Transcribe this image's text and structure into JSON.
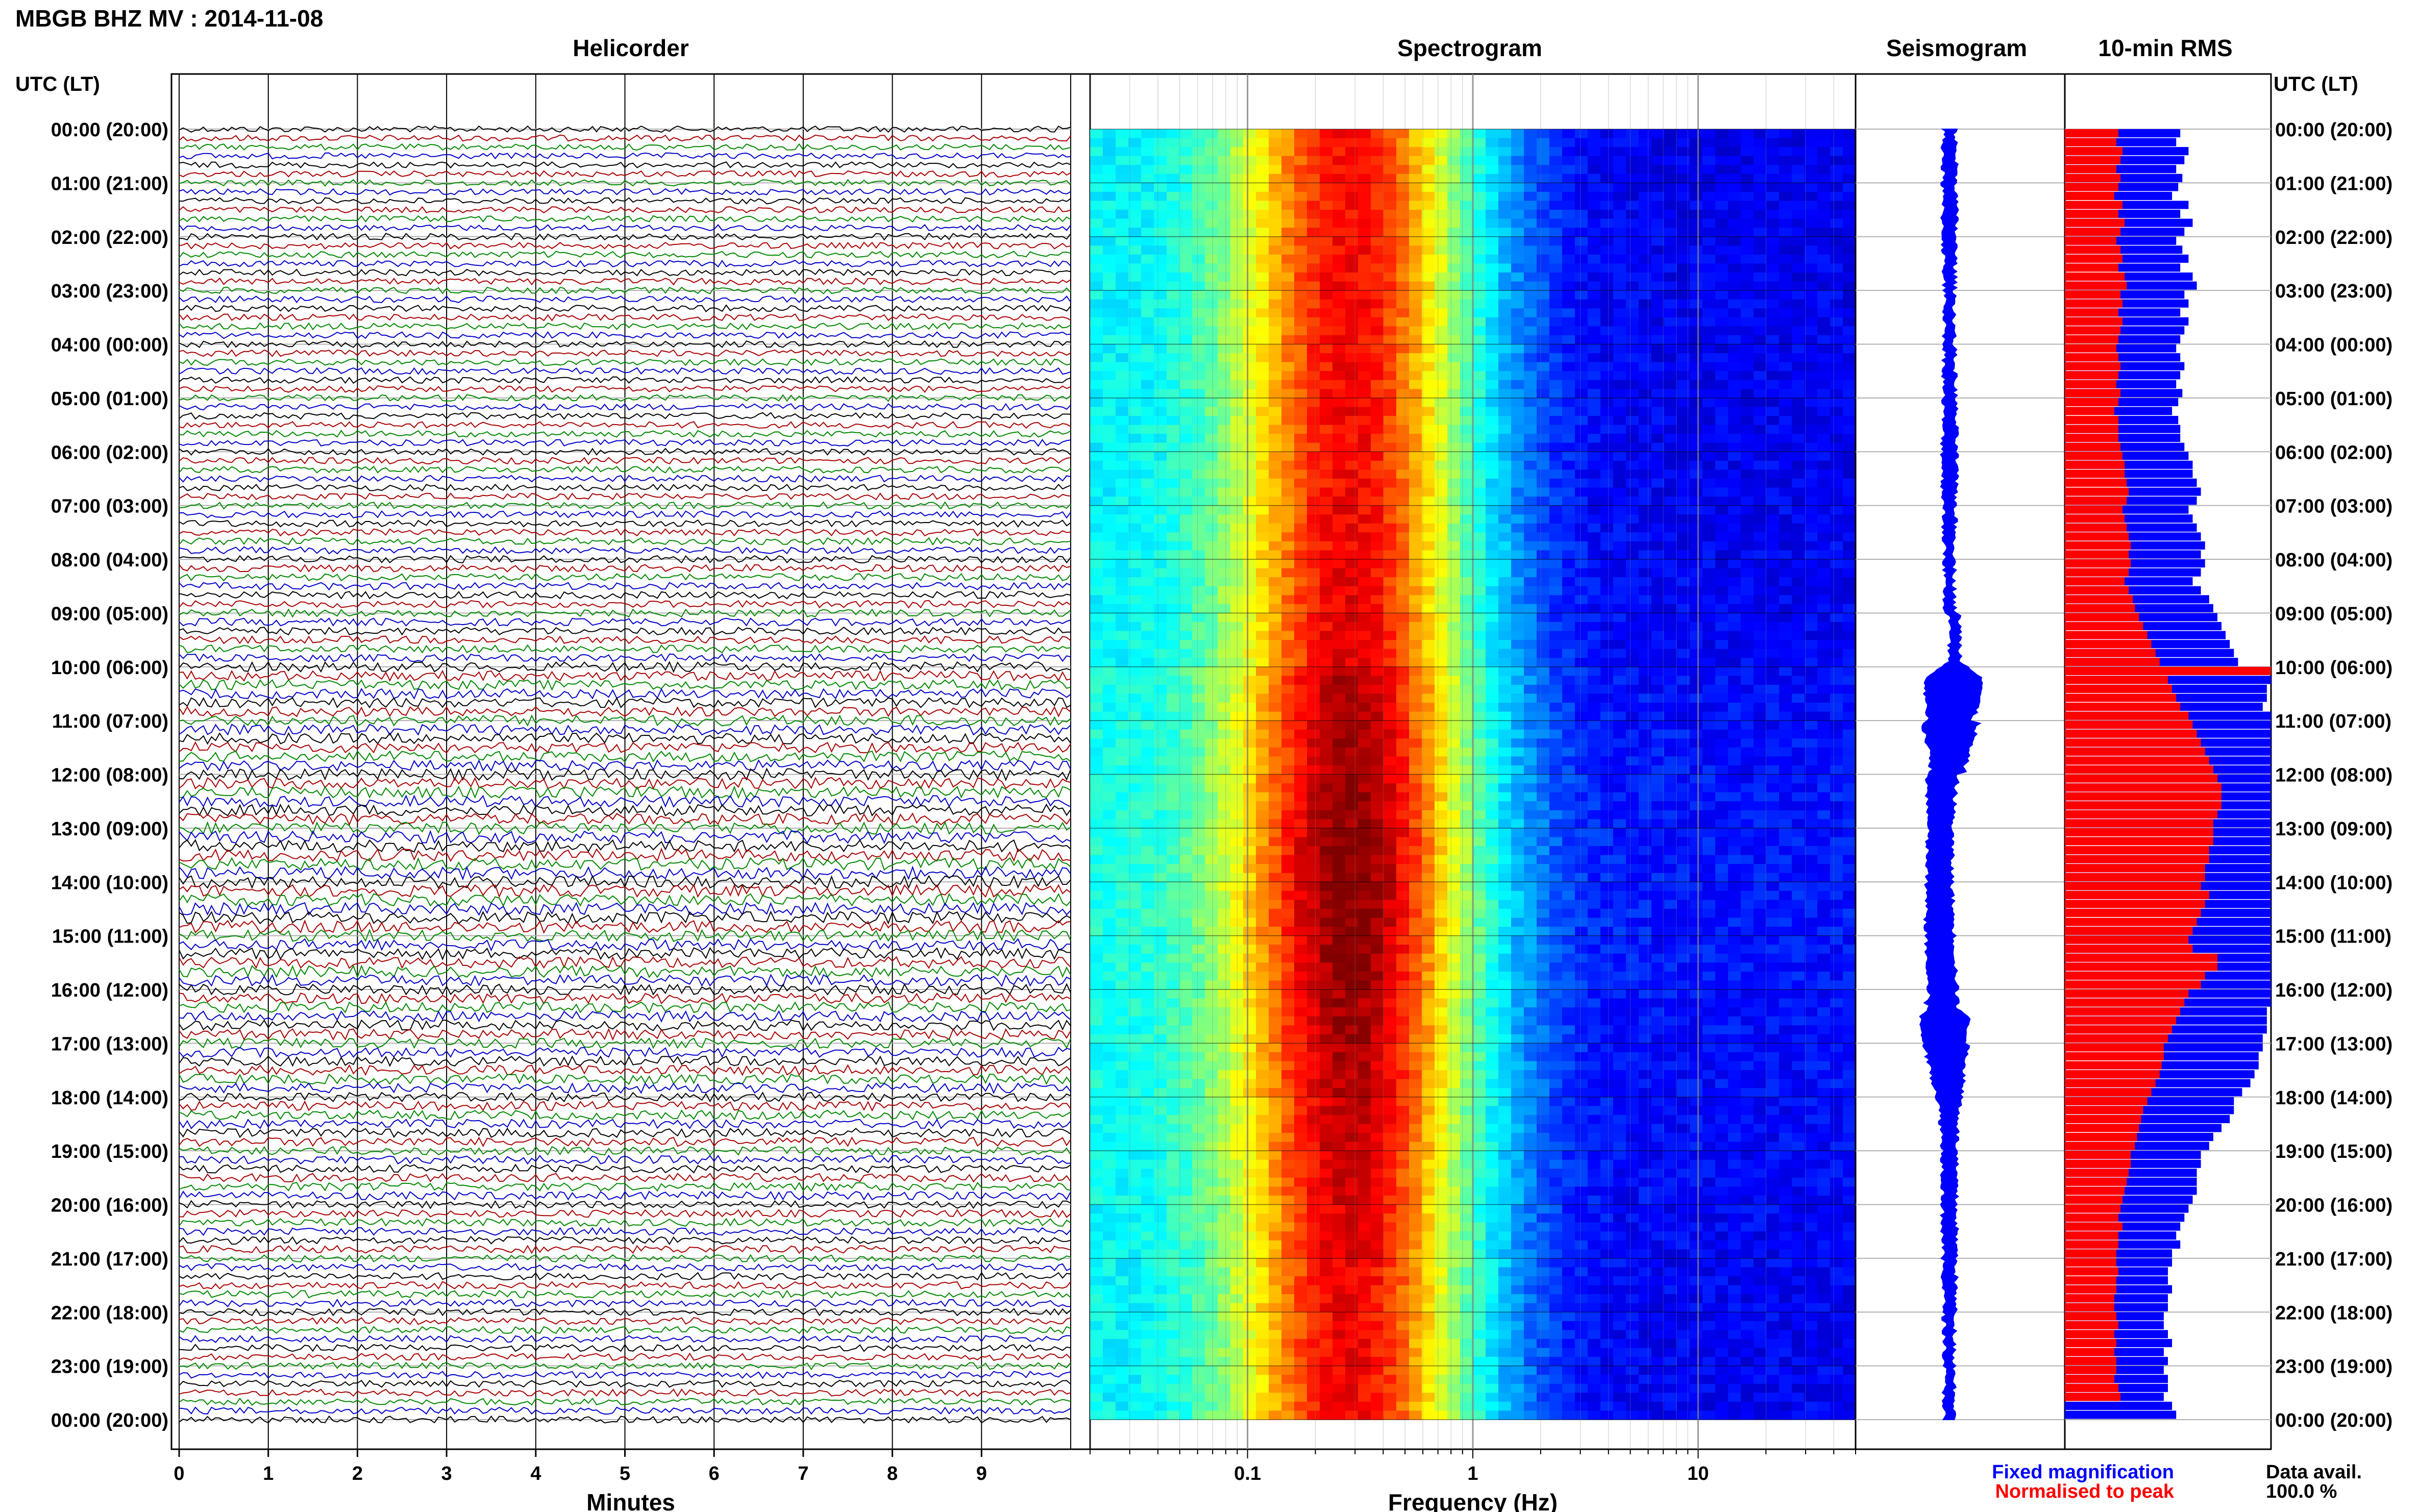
{
  "header": {
    "title": "MBGB BHZ MV : 2014-11-08"
  },
  "panels": {
    "helicorder": "Helicorder",
    "spectrogram": "Spectrogram",
    "seismogram": "Seismogram",
    "rms": "10-min RMS"
  },
  "axis": {
    "time_header": "UTC (LT)",
    "minutes_label": "Minutes",
    "frequency_label": "Frequency (Hz)",
    "minute_ticks": [
      "0",
      "1",
      "2",
      "3",
      "4",
      "5",
      "6",
      "7",
      "8",
      "9"
    ],
    "frequency_ticks": [
      "0.1",
      "1",
      "10"
    ],
    "hour_labels": [
      "00:00 (20:00)",
      "01:00 (21:00)",
      "02:00 (22:00)",
      "03:00 (23:00)",
      "04:00 (00:00)",
      "05:00 (01:00)",
      "06:00 (02:00)",
      "07:00 (03:00)",
      "08:00 (04:00)",
      "09:00 (05:00)",
      "10:00 (06:00)",
      "11:00 (07:00)",
      "12:00 (08:00)",
      "13:00 (09:00)",
      "14:00 (10:00)",
      "15:00 (11:00)",
      "16:00 (12:00)",
      "17:00 (13:00)",
      "18:00 (14:00)",
      "19:00 (15:00)",
      "20:00 (16:00)",
      "21:00 (17:00)",
      "22:00 (18:00)",
      "23:00 (19:00)",
      "00:00 (20:00)"
    ]
  },
  "legend": {
    "fixed": "Fixed magnification",
    "normalised": "Normalised to peak",
    "avail_label": "Data avail.",
    "avail_value": "100.0 %"
  },
  "colors": {
    "blue": "#0000ff",
    "red": "#ff0000",
    "trace_cycle": [
      "#000000",
      "#aa0000",
      "#008800",
      "#0000cc"
    ]
  },
  "chart_data": [
    {
      "type": "line",
      "title": "Helicorder",
      "xlabel": "Minutes",
      "x_range_minutes": [
        0,
        10
      ],
      "traces_per_hour": 6,
      "hours": 24,
      "relative_amplitude_by_hour": [
        0.8,
        0.8,
        0.85,
        0.85,
        0.85,
        0.85,
        0.85,
        0.9,
        0.95,
        1.0,
        1.3,
        1.4,
        1.5,
        1.6,
        1.6,
        1.5,
        1.4,
        1.3,
        1.2,
        1.1,
        1.0,
        0.95,
        0.9,
        0.9
      ]
    },
    {
      "type": "heatmap",
      "title": "Spectrogram",
      "xlabel": "Frequency (Hz)",
      "x_scale": "log",
      "xlim": [
        0.02,
        50
      ],
      "peak_frequency_hz": 0.3,
      "y_range_hours_utc": [
        0,
        24
      ]
    },
    {
      "type": "line",
      "title": "Seismogram",
      "y_range_hours_utc": [
        0,
        24
      ],
      "envelope_peaks_utc_hours": [
        10.2,
        16.5
      ]
    },
    {
      "type": "bar",
      "title": "10-min RMS",
      "orientation": "horizontal",
      "y_range_hours_utc": [
        0,
        24
      ],
      "series": [
        {
          "name": "Fixed magnification",
          "color": "#0000ff",
          "values": [
            0.56,
            0.54,
            0.6,
            0.58,
            0.54,
            0.57,
            0.55,
            0.52,
            0.6,
            0.56,
            0.62,
            0.58,
            0.54,
            0.57,
            0.6,
            0.56,
            0.62,
            0.64,
            0.58,
            0.6,
            0.56,
            0.6,
            0.58,
            0.56,
            0.54,
            0.56,
            0.58,
            0.56,
            0.54,
            0.57,
            0.55,
            0.52,
            0.55,
            0.56,
            0.56,
            0.58,
            0.6,
            0.62,
            0.62,
            0.64,
            0.66,
            0.64,
            0.6,
            0.62,
            0.64,
            0.66,
            0.68,
            0.66,
            0.68,
            0.66,
            0.62,
            0.66,
            0.7,
            0.72,
            0.74,
            0.76,
            0.78,
            0.8,
            0.82,
            0.84,
            1.0,
            1.0,
            0.98,
            0.98,
            0.96,
            1.0,
            1.0,
            1.0,
            1.0,
            1.0,
            1.0,
            1.0,
            1.0,
            1.0,
            1.0,
            1.0,
            1.0,
            1.0,
            1.0,
            1.0,
            1.0,
            1.0,
            1.0,
            1.0,
            1.0,
            1.0,
            1.0,
            1.0,
            1.0,
            1.0,
            1.0,
            1.0,
            1.0,
            1.0,
            1.0,
            1.0,
            1.0,
            1.0,
            0.98,
            0.98,
            0.98,
            0.96,
            0.96,
            0.94,
            0.94,
            0.92,
            0.9,
            0.86,
            0.82,
            0.82,
            0.8,
            0.76,
            0.72,
            0.7,
            0.66,
            0.66,
            0.64,
            0.64,
            0.64,
            0.62,
            0.6,
            0.58,
            0.56,
            0.54,
            0.56,
            0.52,
            0.52,
            0.5,
            0.5,
            0.52,
            0.5,
            0.5,
            0.48,
            0.48,
            0.5,
            0.52,
            0.48,
            0.5,
            0.48,
            0.5,
            0.5,
            0.48,
            0.52,
            0.54
          ]
        },
        {
          "name": "Normalised to peak",
          "color": "#ff0000",
          "values": [
            0.26,
            0.25,
            0.28,
            0.27,
            0.25,
            0.27,
            0.26,
            0.24,
            0.28,
            0.26,
            0.29,
            0.27,
            0.25,
            0.27,
            0.28,
            0.26,
            0.29,
            0.3,
            0.27,
            0.28,
            0.26,
            0.28,
            0.27,
            0.26,
            0.25,
            0.26,
            0.27,
            0.26,
            0.25,
            0.27,
            0.26,
            0.24,
            0.26,
            0.26,
            0.26,
            0.27,
            0.28,
            0.29,
            0.29,
            0.3,
            0.31,
            0.3,
            0.28,
            0.29,
            0.3,
            0.31,
            0.32,
            0.31,
            0.32,
            0.31,
            0.29,
            0.31,
            0.33,
            0.34,
            0.36,
            0.38,
            0.4,
            0.42,
            0.44,
            0.46,
            1.0,
            0.5,
            0.52,
            0.54,
            0.56,
            0.6,
            0.62,
            0.64,
            0.66,
            0.68,
            0.7,
            0.72,
            0.74,
            0.76,
            0.76,
            0.76,
            0.74,
            0.72,
            0.72,
            0.72,
            0.7,
            0.7,
            0.68,
            0.68,
            0.66,
            0.7,
            0.68,
            0.66,
            0.64,
            0.62,
            0.6,
            0.62,
            0.74,
            0.74,
            0.68,
            0.66,
            0.6,
            0.58,
            0.56,
            0.54,
            0.52,
            0.5,
            0.48,
            0.48,
            0.47,
            0.46,
            0.44,
            0.42,
            0.4,
            0.38,
            0.37,
            0.36,
            0.35,
            0.34,
            0.32,
            0.32,
            0.31,
            0.3,
            0.29,
            0.28,
            0.27,
            0.26,
            0.28,
            0.26,
            0.26,
            0.25,
            0.25,
            0.26,
            0.25,
            0.25,
            0.24,
            0.24,
            0.25,
            0.26,
            0.24,
            0.25,
            0.24,
            0.25,
            0.25,
            0.24,
            0.26,
            0.27
          ]
        }
      ]
    }
  ]
}
